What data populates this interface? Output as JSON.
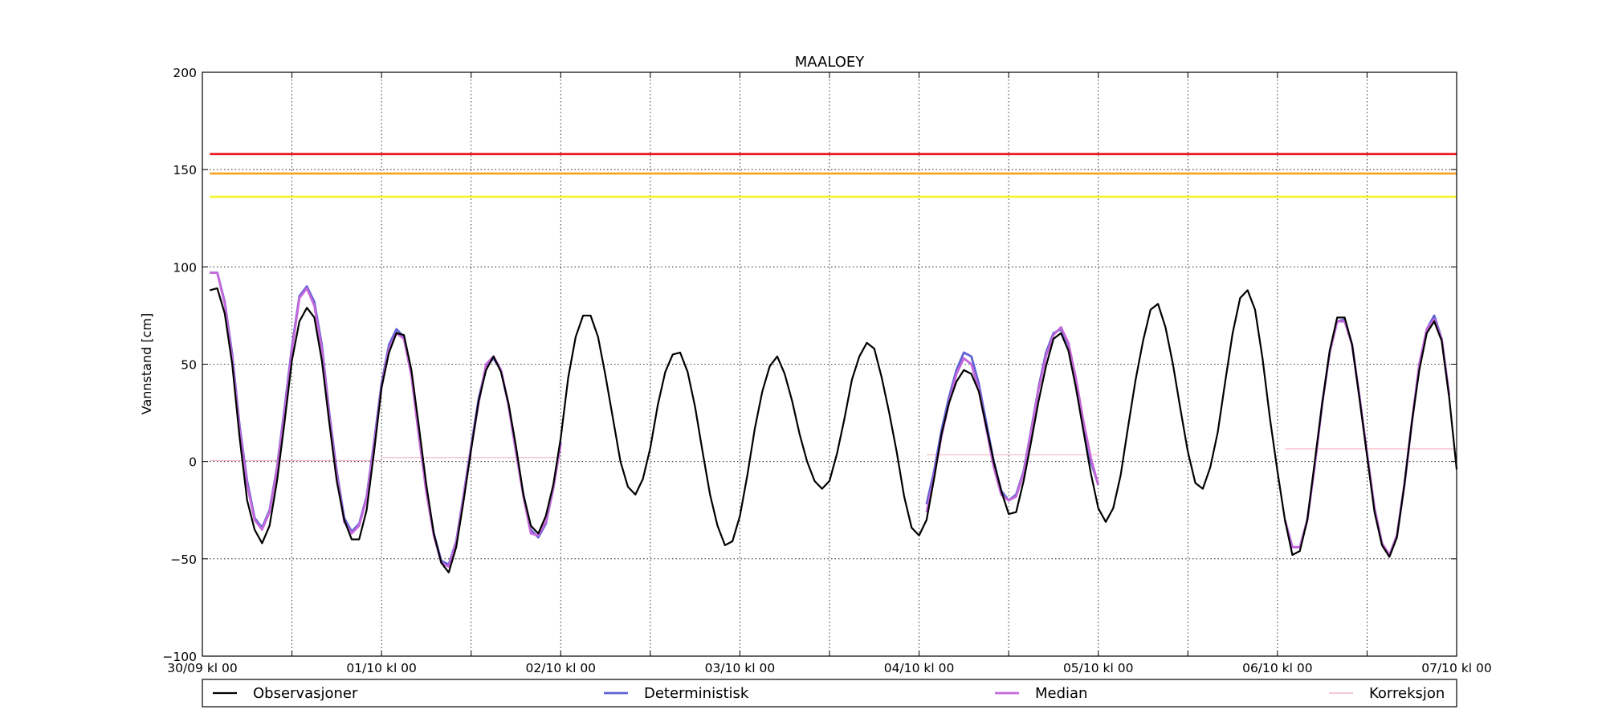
{
  "chart_data": {
    "type": "line",
    "title": "MAALOEY",
    "xlabel": "",
    "ylabel": "Vannstand [cm]",
    "xlim": [
      0,
      168
    ],
    "ylim": [
      -100,
      200
    ],
    "grid": true,
    "legend_position": "bottom",
    "x_unit": "hours since 30/09 kl 00",
    "x_ticks": [
      {
        "x": 0,
        "label": "30/09 kl 00"
      },
      {
        "x": 24,
        "label": "01/10 kl 00"
      },
      {
        "x": 48,
        "label": "02/10 kl 00"
      },
      {
        "x": 72,
        "label": "03/10 kl 00"
      },
      {
        "x": 96,
        "label": "04/10 kl 00"
      },
      {
        "x": 120,
        "label": "05/10 kl 00"
      },
      {
        "x": 144,
        "label": "06/10 kl 00"
      },
      {
        "x": 168,
        "label": "07/10 kl 00"
      }
    ],
    "x_minor_ticks": [
      12,
      36,
      60,
      84,
      108,
      132,
      156
    ],
    "y_ticks": [
      {
        "y": -100,
        "label": "−100"
      },
      {
        "y": -50,
        "label": "−50"
      },
      {
        "y": 0,
        "label": "0"
      },
      {
        "y": 50,
        "label": "50"
      },
      {
        "y": 100,
        "label": "100"
      },
      {
        "y": 150,
        "label": "150"
      },
      {
        "y": 200,
        "label": "200"
      }
    ],
    "thresholds": [
      {
        "value": 158,
        "color": "#e8131b"
      },
      {
        "value": 148,
        "color": "#f6a21a"
      },
      {
        "value": 136,
        "color": "#f4f42a"
      }
    ],
    "series": [
      {
        "name": "Observasjoner",
        "color": "#000000",
        "width": 2.2,
        "x_start": 1,
        "x_step": 1,
        "values": [
          88,
          89,
          76,
          50,
          12,
          -20,
          -35,
          -42,
          -33,
          -10,
          20,
          52,
          72,
          79,
          74,
          52,
          20,
          -10,
          -30,
          -40,
          -40,
          -25,
          5,
          38,
          56,
          66,
          65,
          47,
          18,
          -12,
          -37,
          -52,
          -57,
          -44,
          -20,
          6,
          31,
          47,
          54,
          46,
          30,
          8,
          -17,
          -33,
          -37,
          -28,
          -12,
          12,
          43,
          64,
          75,
          75,
          64,
          44,
          22,
          0,
          -13,
          -17,
          -9,
          7,
          29,
          46,
          55,
          56,
          46,
          28,
          5,
          -17,
          -33,
          -43,
          -41,
          -28,
          -7,
          17,
          36,
          49,
          54,
          45,
          31,
          14,
          0,
          -10,
          -14,
          -10,
          4,
          22,
          42,
          54,
          61,
          58,
          43,
          25,
          5,
          -18,
          -34,
          -38,
          -30,
          -9,
          14,
          30,
          41,
          47,
          45,
          36,
          18,
          0,
          -15,
          -27,
          -26,
          -10,
          10,
          31,
          49,
          63,
          66,
          57,
          38,
          16,
          -6,
          -24,
          -31,
          -24,
          -7,
          18,
          42,
          62,
          78,
          81,
          69,
          50,
          27,
          5,
          -11,
          -14,
          -3,
          15,
          41,
          66,
          84,
          88,
          78,
          53,
          22,
          -5,
          -30,
          -48,
          -46,
          -30,
          0,
          30,
          57,
          74,
          74,
          60,
          32,
          3,
          -26,
          -43,
          -49,
          -39,
          -12,
          20,
          47,
          66,
          72,
          62,
          33,
          -4
        ]
      },
      {
        "name": "Deterministisk",
        "color": "#5f62d6",
        "width": 2.8,
        "segments": [
          {
            "x_start": 1,
            "values": [
              97,
              97,
              82,
              55,
              18,
              -10,
              -29,
              -34,
              -25,
              -3,
              27,
              59,
              85,
              90,
              82,
              60,
              25,
              -5,
              -29,
              -36,
              -32,
              -18,
              10,
              40,
              60,
              68,
              64,
              45,
              14,
              -15,
              -37,
              -51,
              -53,
              -41,
              -17,
              8,
              32,
              49,
              53,
              47,
              29,
              5,
              -17,
              -35,
              -39,
              -32,
              -14,
              10
            ]
          },
          {
            "x_start": 97,
            "values": [
              -22,
              -5,
              16,
              33,
              47,
              56,
              54,
              40,
              20,
              0,
              -15,
              -20,
              -17,
              -5,
              16,
              38,
              56,
              66,
              68,
              60,
              42,
              20,
              0,
              -12
            ]
          },
          {
            "x_start": 145,
            "values": [
              -30,
              -44,
              -44,
              -30,
              -2,
              30,
              56,
              72,
              73,
              60,
              33,
              4,
              -24,
              -42,
              -48,
              -38,
              -12,
              20,
              50,
              68,
              75,
              63,
              34
            ]
          }
        ]
      },
      {
        "name": "Median",
        "color": "#c568da",
        "width": 2.8,
        "segments": [
          {
            "x_start": 1,
            "values": [
              97,
              97,
              81,
              53,
              16,
              -12,
              -30,
              -35,
              -26,
              -4,
              25,
              57,
              84,
              89,
              80,
              58,
              23,
              -7,
              -31,
              -37,
              -33,
              -19,
              8,
              38,
              58,
              66,
              63,
              44,
              13,
              -16,
              -38,
              -52,
              -54,
              -42,
              -18,
              7,
              30,
              50,
              54,
              47,
              29,
              5,
              -18,
              -37,
              -38,
              -31,
              -14,
              9
            ]
          },
          {
            "x_start": 97,
            "values": [
              -26,
              -8,
              13,
              30,
              45,
              53,
              50,
              37,
              17,
              -3,
              -17,
              -20,
              -18,
              -6,
              15,
              37,
              54,
              65,
              69,
              61,
              43,
              21,
              2,
              -12
            ]
          },
          {
            "x_start": 145,
            "values": [
              -30,
              -44,
              -44,
              -30,
              -2,
              30,
              56,
              72,
              72,
              60,
              33,
              4,
              -24,
              -42,
              -48,
              -38,
              -12,
              20,
              50,
              68,
              73,
              63,
              34
            ]
          }
        ]
      },
      {
        "name": "Korreksjon",
        "color": "#f6b6c4",
        "width": 1.2,
        "segments": [
          {
            "x_start": 1,
            "x_end": 24,
            "value": 0.5
          },
          {
            "x_start": 24,
            "x_end": 48,
            "value": 2
          },
          {
            "x_start": 97,
            "x_end": 120,
            "value": 3.5
          },
          {
            "x_start": 145,
            "x_end": 168,
            "value": 6.5
          }
        ]
      }
    ]
  }
}
